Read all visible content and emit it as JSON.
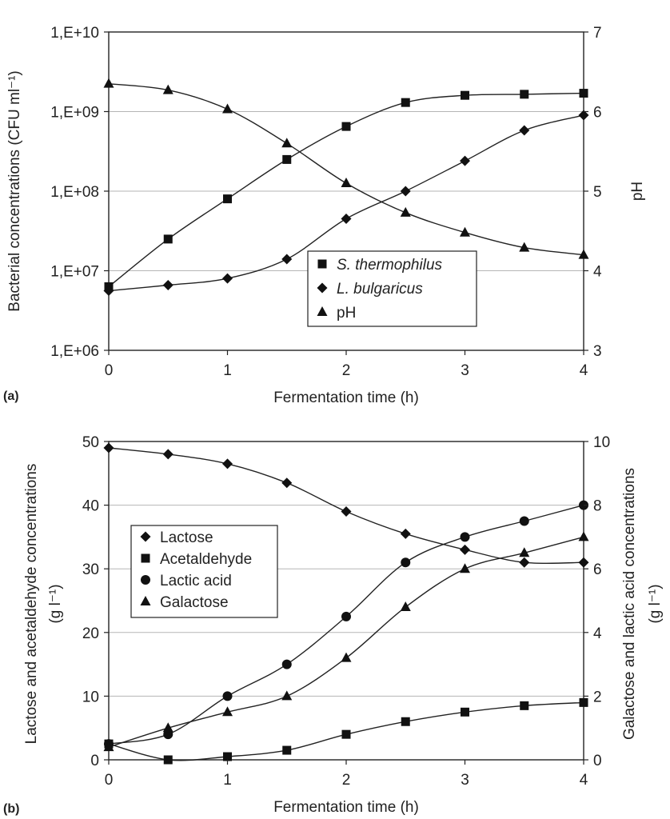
{
  "chart_data": [
    {
      "panel_label": "(a)",
      "type": "scatter",
      "x": [
        0,
        0.5,
        1,
        1.5,
        2,
        2.5,
        3,
        3.5,
        4
      ],
      "xlabel": "Fermentation time (h)",
      "xlim": [
        0,
        4
      ],
      "x_ticks": [
        "0",
        "1",
        "2",
        "3",
        "4"
      ],
      "ylabel": "Bacterial concentrations (CFU ml⁻¹)",
      "ylim": [
        1000000,
        10000000000
      ],
      "y_ticks": [
        "1,E+06",
        "1,E+07",
        "1,E+08",
        "1,E+09",
        "1,E+10"
      ],
      "y2label": "pH",
      "y2lim": [
        3,
        7
      ],
      "y2_ticks": [
        "3",
        "4",
        "5",
        "6",
        "7"
      ],
      "legend": "lower-center",
      "series": [
        {
          "name": "S. thermophilus",
          "axis": "left",
          "marker": "square",
          "values": [
            6300000,
            25000000,
            80000000,
            250000000,
            650000000,
            1300000000,
            1600000000,
            1650000000,
            1700000000
          ]
        },
        {
          "name": "L. bulgaricus",
          "axis": "left",
          "marker": "diamond",
          "values": [
            5600000,
            6600000,
            8000000,
            14000000,
            45000000,
            100000000,
            240000000,
            580000000,
            900000000
          ]
        },
        {
          "name": "pH",
          "axis": "right",
          "marker": "triangle",
          "values": [
            6.35,
            6.27,
            6.03,
            5.6,
            5.1,
            4.73,
            4.48,
            4.29,
            4.2
          ]
        }
      ]
    },
    {
      "panel_label": "(b)",
      "type": "scatter",
      "x": [
        0,
        0.5,
        1,
        1.5,
        2,
        2.5,
        3,
        3.5,
        4
      ],
      "xlabel": "Fermentation time (h)",
      "xlim": [
        0,
        4
      ],
      "x_ticks": [
        "0",
        "1",
        "2",
        "3",
        "4"
      ],
      "ylabel_lines": [
        "Lactose and acetaldehyde concentrations",
        "(g l⁻¹)"
      ],
      "ylim": [
        0,
        50
      ],
      "y_ticks": [
        "0",
        "10",
        "20",
        "30",
        "40",
        "50"
      ],
      "y2label_lines": [
        "Galactose and lactic acid concentrations",
        "(g l⁻¹)"
      ],
      "y2lim": [
        0,
        10
      ],
      "y2_ticks": [
        "0",
        "2",
        "4",
        "6",
        "8",
        "10"
      ],
      "legend": "upper-left",
      "series": [
        {
          "name": "Lactose",
          "axis": "left",
          "marker": "diamond",
          "values": [
            49,
            48,
            46.5,
            43.5,
            39,
            35.5,
            33,
            31,
            31
          ]
        },
        {
          "name": "Acetaldehyde",
          "axis": "left",
          "marker": "square",
          "values": [
            2.5,
            0,
            0.5,
            1.5,
            4,
            6,
            7.5,
            8.5,
            9
          ]
        },
        {
          "name": "Lactic acid",
          "axis": "right",
          "marker": "circle",
          "values": [
            0.5,
            0.8,
            2,
            3,
            4.5,
            6.2,
            7,
            7.5,
            8
          ]
        },
        {
          "name": "Galactose",
          "axis": "right",
          "marker": "triangle",
          "values": [
            0.4,
            1,
            1.5,
            2,
            3.2,
            4.8,
            6,
            6.5,
            7
          ]
        }
      ]
    }
  ]
}
